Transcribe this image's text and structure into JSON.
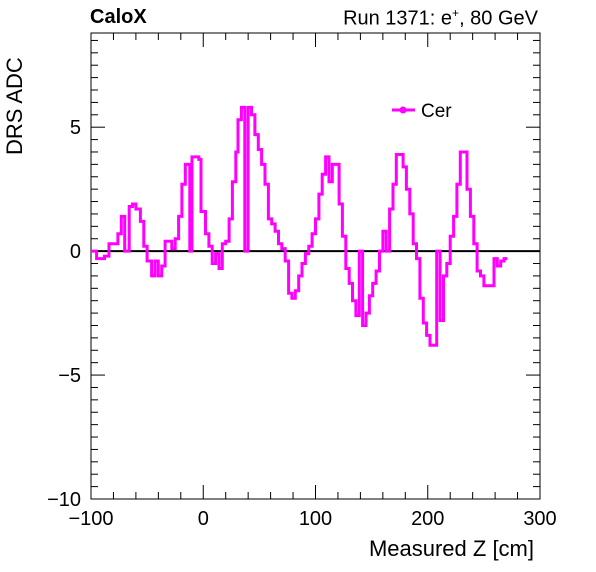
{
  "header": {
    "left_title": "CaloX",
    "right_title_pre": "Run 1371: e",
    "right_title_sup": "+",
    "right_title_post": ", 80 GeV"
  },
  "chart_data": {
    "type": "line",
    "xlabel": "Measured Z [cm]",
    "ylabel": "DRS ADC",
    "xlim": [
      -100,
      300
    ],
    "ylim": [
      -10,
      8.8
    ],
    "xticks": [
      -100,
      0,
      100,
      200,
      300
    ],
    "xtick_labels": [
      "−100",
      "0",
      "100",
      "200",
      "300"
    ],
    "yticks": [
      -10,
      -5,
      0,
      5
    ],
    "ytick_labels": [
      "−10",
      "−5",
      "0",
      "5"
    ],
    "grid": false,
    "legend_position": "top-right",
    "zero_line": true,
    "series": [
      {
        "name": "Cer",
        "color": "#ff00ff",
        "step_x": [
          -100,
          -95,
          -95,
          -88,
          -88,
          -84,
          -84,
          -76,
          -76,
          -73,
          -73,
          -70,
          -70,
          -66,
          -66,
          -63,
          -63,
          -60,
          -60,
          -56,
          -56,
          -53,
          -53,
          -50,
          -50,
          -46,
          -46,
          -43,
          -43,
          -40,
          -40,
          -37,
          -37,
          -34,
          -34,
          -28,
          -28,
          -25,
          -25,
          -22,
          -22,
          -19,
          -19,
          -16,
          -16,
          -12,
          -12,
          -10,
          -10,
          -4,
          -4,
          -2,
          -2,
          2,
          2,
          5,
          5,
          8,
          8,
          11,
          11,
          14,
          14,
          17,
          17,
          20,
          20,
          23,
          23,
          26,
          26,
          29,
          29,
          31,
          31,
          34,
          34,
          37,
          37,
          40,
          40,
          43,
          43,
          46,
          46,
          49,
          49,
          52,
          52,
          55,
          55,
          58,
          58,
          61,
          61,
          64,
          64,
          67,
          67,
          70,
          70,
          73,
          73,
          76,
          76,
          79,
          79,
          82,
          82,
          85,
          85,
          88,
          88,
          91,
          91,
          94,
          94,
          97,
          97,
          100,
          100,
          103,
          103,
          106,
          106,
          109,
          109,
          112,
          112,
          115,
          115,
          118,
          118,
          121,
          121,
          124,
          124,
          127,
          127,
          130,
          130,
          133,
          133,
          136,
          136,
          139,
          139,
          142,
          142,
          145,
          145,
          148,
          148,
          151,
          151,
          154,
          154,
          157,
          157,
          160,
          160,
          163,
          163,
          166,
          166,
          169,
          169,
          172,
          172,
          175,
          175,
          178,
          178,
          181,
          181,
          184,
          184,
          187,
          187,
          190,
          190,
          193,
          193,
          196,
          196,
          199,
          199,
          202,
          202,
          205,
          205,
          208,
          208,
          211,
          211,
          214,
          214,
          217,
          217,
          220,
          220,
          223,
          223,
          226,
          226,
          229,
          229,
          232,
          232,
          235,
          235,
          238,
          238,
          241,
          241,
          244,
          244,
          247,
          247,
          250,
          250,
          253,
          253,
          256,
          256,
          259,
          259,
          262,
          262,
          265,
          265,
          268,
          268,
          271,
          271,
          274,
          274,
          277,
          277,
          280,
          280,
          283,
          283,
          286,
          286,
          289,
          289,
          292,
          292,
          295,
          295,
          298,
          298,
          300
        ],
        "step_y": [
          0,
          0,
          -0.3,
          -0.3,
          -0.2,
          -0.2,
          0.3,
          0.3,
          0.7,
          0.7,
          1.4,
          1.4,
          0,
          0,
          1.8,
          1.8,
          1.9,
          1.9,
          1.7,
          1.7,
          1.2,
          1.2,
          0.2,
          0.2,
          -0.4,
          -0.4,
          -1,
          -1,
          -0.4,
          -0.4,
          -1,
          -1,
          -0.6,
          -0.6,
          0.4,
          0.4,
          0.1,
          0.1,
          0.5,
          0.5,
          1.4,
          1.4,
          2.7,
          2.7,
          3.5,
          3.5,
          0,
          0,
          3.8,
          3.8,
          3.7,
          3.7,
          1.6,
          1.6,
          0.7,
          0.7,
          0.2,
          0.2,
          -0.5,
          -0.5,
          -0.1,
          -0.1,
          -0.7,
          -0.7,
          0.3,
          0.3,
          0.4,
          0.4,
          1.3,
          1.3,
          2.8,
          2.8,
          4,
          4,
          5.3,
          5.3,
          5.8,
          5.8,
          0,
          0,
          5.8,
          5.8,
          5.5,
          5.5,
          4.7,
          4.7,
          4.1,
          4.1,
          3.5,
          3.5,
          2.7,
          2.7,
          1.3,
          1.3,
          1.1,
          1.1,
          0.8,
          0.8,
          0.3,
          0.3,
          0.1,
          0.1,
          -0.4,
          -0.4,
          -1.7,
          -1.7,
          -1.9,
          -1.9,
          -1.6,
          -1.6,
          -1.0,
          -1.0,
          -0.5,
          -0.5,
          -0.1,
          -0.1,
          0.2,
          0.2,
          0.7,
          0.7,
          1.3,
          1.3,
          2.3,
          2.3,
          3.1,
          3.1,
          3.8,
          3.8,
          2.8,
          2.8,
          3.5,
          3.5,
          3.5,
          3.5,
          1.9,
          1.9,
          0.6,
          0.6,
          -0.7,
          -0.7,
          -1.3,
          -1.3,
          -2.0,
          -2.0,
          -2.6,
          -2.6,
          0,
          0,
          -3,
          -3,
          -2.5,
          -2.5,
          -1.8,
          -1.8,
          -1.3,
          -1.3,
          -0.8,
          -0.8,
          0,
          0,
          0.8,
          0.8,
          0,
          0,
          1.7,
          1.7,
          2.7,
          2.7,
          3.9,
          3.9,
          3.9,
          3.9,
          3.4,
          3.4,
          2.5,
          2.5,
          1.5,
          1.5,
          0.3,
          0.3,
          -0.3,
          -0.3,
          -1.9,
          -1.9,
          -2.9,
          -2.9,
          -3.4,
          -3.4,
          -3.8,
          -3.8,
          -3.8,
          -3.8,
          0,
          0,
          -2.8,
          -2.8,
          -1.0,
          -1.0,
          -0.5,
          -0.5,
          0.6,
          0.6,
          1.4,
          1.4,
          2.7,
          2.7,
          4.0,
          4.0,
          4.0,
          4.0,
          2.5,
          2.5,
          1.4,
          1.4,
          0.3,
          0.3,
          -0.8,
          -0.8,
          -1.0,
          -1.0,
          -1.4,
          -1.4,
          -1.4,
          -1.4,
          -1.4,
          -1.4,
          -0.3,
          -0.3,
          -0.6,
          -0.6,
          -0.4,
          -0.4,
          -0.3,
          -0.3,
          -0.3
        ]
      }
    ]
  }
}
